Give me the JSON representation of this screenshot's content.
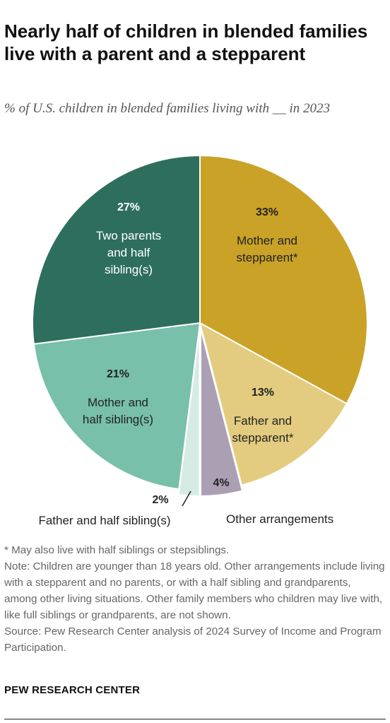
{
  "title": "Nearly half of children in blended families live with a parent and a stepparent",
  "subtitle": "% of U.S. children in blended families living with __ in 2023",
  "chart_data": {
    "type": "pie",
    "slices": [
      {
        "name": "Mother and stepparent*",
        "value": 33,
        "label": "33%",
        "color": "#c9a227"
      },
      {
        "name": "Father and stepparent*",
        "value": 13,
        "label": "13%",
        "color": "#e3cc7f"
      },
      {
        "name": "Other arrangements",
        "value": 4,
        "label": "4%",
        "color": "#aba0b3"
      },
      {
        "name": "Father and half sibling(s)",
        "value": 2,
        "label": "2%",
        "color": "#d5ebe4"
      },
      {
        "name": "Mother and half sibling(s)",
        "value": 21,
        "label": "21%",
        "color": "#78c0aa"
      },
      {
        "name": "Two parents and half sibling(s)",
        "value": 27,
        "label": "27%",
        "color": "#2e6e5d"
      }
    ]
  },
  "notes": {
    "asterisk": "* May also live with half siblings or stepsiblings.",
    "note": "Note: Children are younger than 18 years old. Other arrangements include living with a stepparent and no parents, or with a half sibling and grandparents, among other living situations. Other family members who children may live with, like full siblings or grandparents, are not shown.",
    "source": "Source: Pew Research Center analysis of 2024 Survey of Income and Program Participation."
  },
  "brand": "PEW RESEARCH CENTER"
}
